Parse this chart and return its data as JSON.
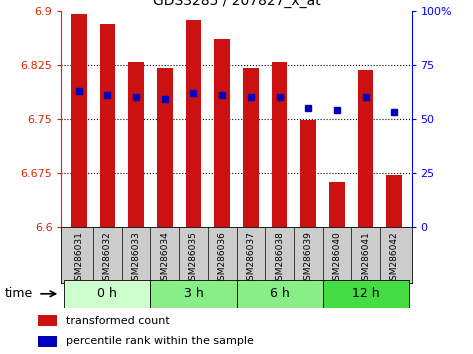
{
  "title": "GDS3285 / 207827_x_at",
  "samples": [
    "GSM286031",
    "GSM286032",
    "GSM286033",
    "GSM286034",
    "GSM286035",
    "GSM286036",
    "GSM286037",
    "GSM286038",
    "GSM286039",
    "GSM286040",
    "GSM286041",
    "GSM286042"
  ],
  "bar_values": [
    6.895,
    6.882,
    6.828,
    6.82,
    6.887,
    6.86,
    6.82,
    6.828,
    6.748,
    6.662,
    6.818,
    6.672
  ],
  "percentile_values": [
    63,
    61,
    60,
    59,
    62,
    61,
    60,
    60,
    55,
    54,
    60,
    53
  ],
  "ylim": [
    6.6,
    6.9
  ],
  "y_ticks": [
    6.6,
    6.675,
    6.75,
    6.825,
    6.9
  ],
  "y_tick_labels": [
    "6.6",
    "6.675",
    "6.75",
    "6.825",
    "6.9"
  ],
  "right_yticks": [
    0,
    25,
    50,
    75,
    100
  ],
  "right_ytick_labels": [
    "0",
    "25",
    "50",
    "75",
    "100%"
  ],
  "bar_color": "#cc1111",
  "dot_color": "#0000bb",
  "baseline": 6.6,
  "group_configs": [
    [
      0,
      3,
      "#ccffcc",
      "0 h"
    ],
    [
      3,
      6,
      "#88ee88",
      "3 h"
    ],
    [
      6,
      9,
      "#88ee88",
      "6 h"
    ],
    [
      9,
      12,
      "#44dd44",
      "12 h"
    ]
  ],
  "time_label": "time",
  "legend_red_label": "transformed count",
  "legend_blue_label": "percentile rank within the sample",
  "sample_bg_color": "#cccccc",
  "bar_color_r": "#cc1111",
  "dot_color_b": "#0000bb"
}
